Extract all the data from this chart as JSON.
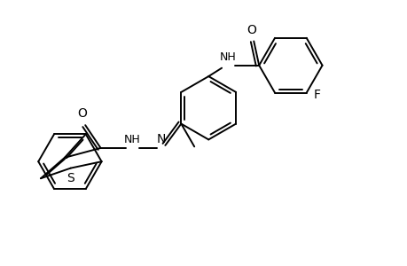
{
  "background_color": "#ffffff",
  "line_color": "#000000",
  "line_width": 1.4,
  "font_size": 9,
  "fig_width": 4.6,
  "fig_height": 3.0,
  "dpi": 100,
  "xlim": [
    0,
    9.2
  ],
  "ylim": [
    0,
    6.0
  ]
}
